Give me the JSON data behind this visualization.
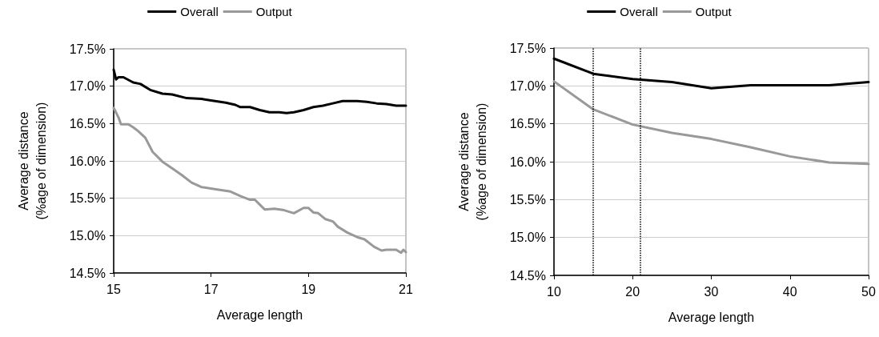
{
  "chart_data": [
    {
      "type": "line",
      "xlabel": "Average length",
      "ylabel": "Average distance\n(%age of dimension)",
      "legend": "top",
      "grid": "y",
      "marker": "none",
      "line_style": "solid",
      "xlim": [
        15,
        21
      ],
      "xticks": [
        15,
        17,
        19,
        21
      ],
      "ylim": [
        14.5,
        17.5
      ],
      "yticks": [
        {
          "value": 14.5,
          "label": "14.5%"
        },
        {
          "value": 15.0,
          "label": "15.0%"
        },
        {
          "value": 15.5,
          "label": "15.5%"
        },
        {
          "value": 16.0,
          "label": "16.0%"
        },
        {
          "value": 16.5,
          "label": "16.5%"
        },
        {
          "value": 17.0,
          "label": "17.0%"
        },
        {
          "value": 17.5,
          "label": "17.5%"
        }
      ],
      "series": [
        {
          "name": "Overall",
          "color": "#000000",
          "x": [
            15.0,
            15.05,
            15.1,
            15.2,
            15.4,
            15.55,
            15.75,
            16.0,
            16.2,
            16.5,
            16.8,
            17.0,
            17.3,
            17.5,
            17.6,
            17.8,
            18.0,
            18.2,
            18.4,
            18.55,
            18.7,
            18.9,
            19.1,
            19.3,
            19.5,
            19.7,
            20.0,
            20.2,
            20.4,
            20.6,
            20.8,
            21.0
          ],
          "values": [
            17.22,
            17.09,
            17.12,
            17.12,
            17.05,
            17.03,
            16.95,
            16.9,
            16.89,
            16.84,
            16.83,
            16.81,
            16.78,
            16.75,
            16.72,
            16.72,
            16.68,
            16.65,
            16.65,
            16.64,
            16.65,
            16.68,
            16.72,
            16.74,
            16.77,
            16.8,
            16.8,
            16.79,
            16.77,
            16.76,
            16.74,
            16.74
          ]
        },
        {
          "name": "Output",
          "color": "#999999",
          "x": [
            15.0,
            15.1,
            15.15,
            15.3,
            15.4,
            15.5,
            15.65,
            15.8,
            16.0,
            16.2,
            16.4,
            16.6,
            16.8,
            17.1,
            17.4,
            17.6,
            17.8,
            17.9,
            18.1,
            18.3,
            18.5,
            18.7,
            18.9,
            19.0,
            19.1,
            19.2,
            19.35,
            19.5,
            19.6,
            19.8,
            20.0,
            20.15,
            20.35,
            20.5,
            20.6,
            20.8,
            20.9,
            20.95,
            21.0
          ],
          "values": [
            16.71,
            16.58,
            16.49,
            16.49,
            16.45,
            16.4,
            16.31,
            16.12,
            15.99,
            15.9,
            15.81,
            15.71,
            15.65,
            15.62,
            15.59,
            15.53,
            15.48,
            15.48,
            15.35,
            15.36,
            15.34,
            15.3,
            15.37,
            15.37,
            15.31,
            15.3,
            15.22,
            15.19,
            15.12,
            15.04,
            14.98,
            14.95,
            14.85,
            14.8,
            14.81,
            14.81,
            14.77,
            14.81,
            14.78
          ]
        }
      ]
    },
    {
      "type": "line",
      "xlabel": "Average length",
      "ylabel": "Average distance\n(%age of dimension)",
      "legend": "top",
      "grid": "y",
      "marker": "none",
      "line_style": "solid",
      "xlim": [
        10,
        50
      ],
      "xticks": [
        10,
        20,
        30,
        40,
        50
      ],
      "ylim": [
        14.5,
        17.5
      ],
      "yticks": [
        {
          "value": 14.5,
          "label": "14.5%"
        },
        {
          "value": 15.0,
          "label": "15.0%"
        },
        {
          "value": 15.5,
          "label": "15.5%"
        },
        {
          "value": 16.0,
          "label": "16.0%"
        },
        {
          "value": 16.5,
          "label": "16.5%"
        },
        {
          "value": 17.0,
          "label": "17.0%"
        },
        {
          "value": 17.5,
          "label": "17.5%"
        }
      ],
      "ref_lines": [
        {
          "axis": "x",
          "value": 15,
          "label": null,
          "color": "#000000",
          "line_style": "dotted"
        },
        {
          "axis": "x",
          "value": 21,
          "label": null,
          "color": "#000000",
          "line_style": "dotted"
        }
      ],
      "series": [
        {
          "name": "Overall",
          "color": "#000000",
          "x": [
            10,
            15,
            20,
            25,
            30,
            35,
            40,
            45,
            50
          ],
          "values": [
            17.36,
            17.16,
            17.09,
            17.05,
            16.97,
            17.01,
            17.01,
            17.01,
            17.05
          ]
        },
        {
          "name": "Output",
          "color": "#999999",
          "x": [
            10,
            15,
            20,
            25,
            30,
            35,
            40,
            45,
            50
          ],
          "values": [
            17.06,
            16.69,
            16.49,
            16.38,
            16.3,
            16.19,
            16.07,
            15.99,
            15.97
          ]
        }
      ]
    }
  ]
}
